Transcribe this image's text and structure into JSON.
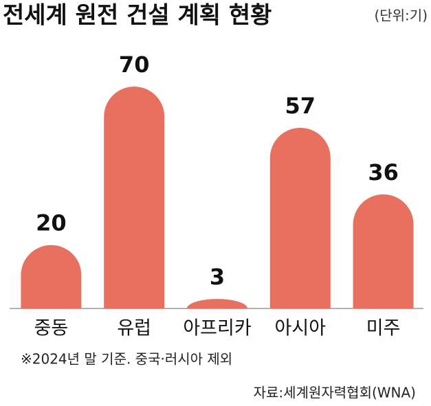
{
  "chart_data": {
    "type": "bar",
    "title": "전세계 원전 건설 계획 현황",
    "subtitle": "(단위:기)",
    "categories": [
      "중동",
      "유럽",
      "아프리카",
      "아시아",
      "미주"
    ],
    "values": [
      20,
      70,
      3,
      57,
      36
    ],
    "color": "#e8705f",
    "ylim": [
      0,
      70
    ],
    "notes": [
      "※2024년 말 기준. 중국·러시아 제외",
      "자료:세계원자력협회(WNA)"
    ]
  }
}
